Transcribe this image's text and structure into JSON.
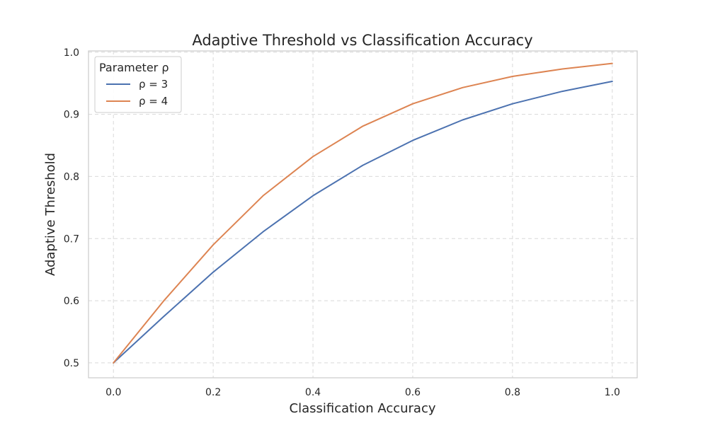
{
  "chart_data": {
    "type": "line",
    "title": "Adaptive Threshold vs Classification Accuracy",
    "xlabel": "Classification Accuracy",
    "ylabel": "Adaptive Threshold",
    "xlim": [
      -0.05,
      1.05
    ],
    "ylim": [
      0.476,
      1.002
    ],
    "xticks": [
      0.0,
      0.2,
      0.4,
      0.6,
      0.8,
      1.0
    ],
    "xtick_labels": [
      "0.0",
      "0.2",
      "0.4",
      "0.6",
      "0.8",
      "1.0"
    ],
    "yticks": [
      0.5,
      0.6,
      0.7,
      0.8,
      0.9,
      1.0
    ],
    "ytick_labels": [
      "0.5",
      "0.6",
      "0.7",
      "0.8",
      "0.9",
      "1.0"
    ],
    "grid": true,
    "legend": {
      "title": "Parameter ρ",
      "placement": "top-left"
    },
    "x": [
      0.0,
      0.1,
      0.2,
      0.3,
      0.4,
      0.5,
      0.6,
      0.7,
      0.8,
      0.9,
      1.0
    ],
    "series": [
      {
        "name": "ρ = 3",
        "color": "#4c72b0",
        "values": [
          0.5,
          0.574,
          0.646,
          0.711,
          0.769,
          0.818,
          0.858,
          0.891,
          0.917,
          0.937,
          0.953
        ]
      },
      {
        "name": "ρ = 4",
        "color": "#dd8452",
        "values": [
          0.5,
          0.599,
          0.69,
          0.769,
          0.832,
          0.881,
          0.917,
          0.943,
          0.961,
          0.973,
          0.982
        ]
      }
    ]
  }
}
